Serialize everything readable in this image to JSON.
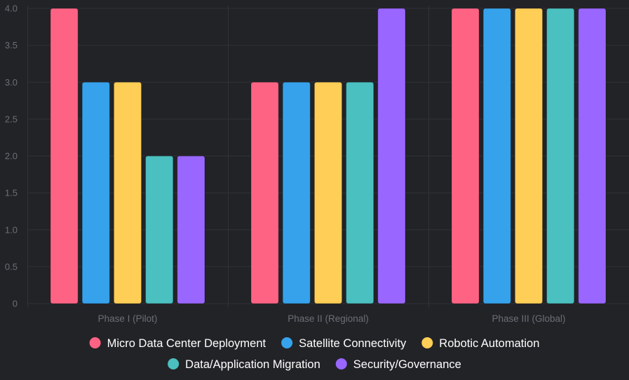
{
  "chart_data": {
    "type": "bar",
    "title": "",
    "xlabel": "",
    "ylabel": "",
    "categories": [
      "Phase I (Pilot)",
      "Phase II (Regional)",
      "Phase III (Global)"
    ],
    "series": [
      {
        "name": "Micro Data Center Deployment",
        "values": [
          4,
          3,
          4
        ],
        "color": "#ff6384"
      },
      {
        "name": "Satellite Connectivity",
        "values": [
          3,
          3,
          4
        ],
        "color": "#36a2eb"
      },
      {
        "name": "Robotic Automation",
        "values": [
          3,
          3,
          4
        ],
        "color": "#ffce56"
      },
      {
        "name": "Data/Application Migration",
        "values": [
          2,
          3,
          4
        ],
        "color": "#4bc0c0"
      },
      {
        "name": "Security/Governance",
        "values": [
          2,
          4,
          4
        ],
        "color": "#9966ff"
      }
    ],
    "ylim": [
      0,
      4.0
    ],
    "yticks": [
      "0",
      "0.5",
      "1.0",
      "1.5",
      "2.0",
      "2.5",
      "3.0",
      "3.5",
      "4.0"
    ],
    "grid": true,
    "legend_position": "bottom"
  }
}
